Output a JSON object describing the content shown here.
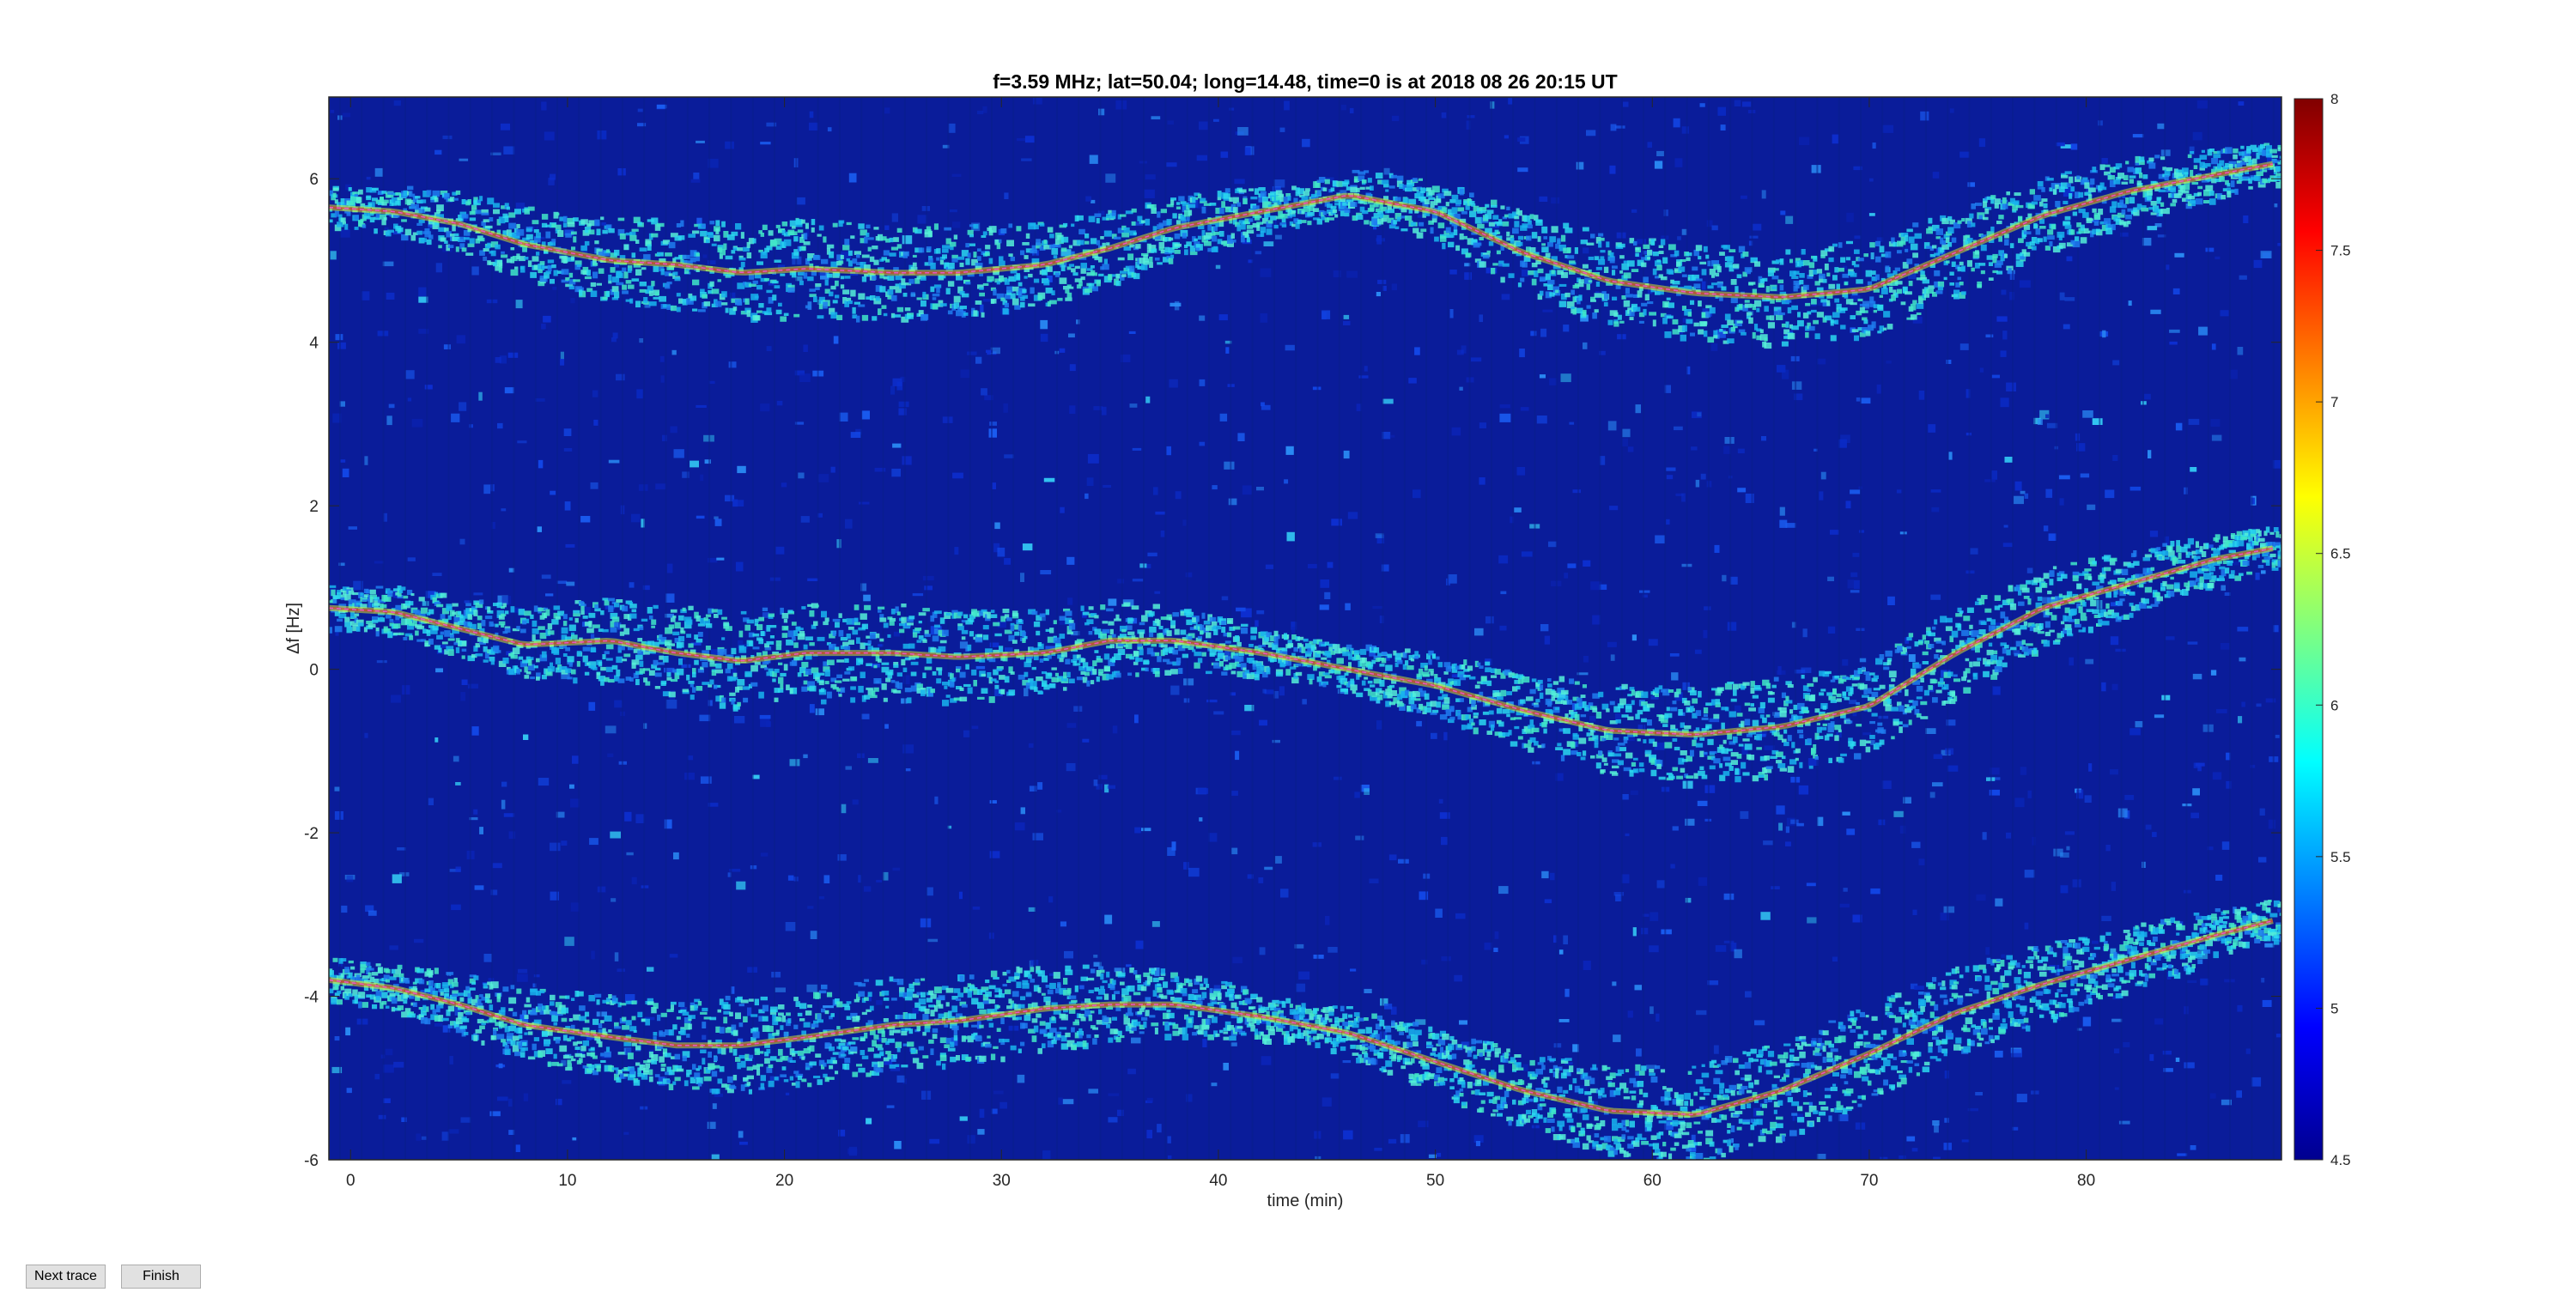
{
  "buttons": {
    "next_trace": "Next trace",
    "finish": "Finish"
  },
  "chart_data": {
    "type": "heatmap",
    "title": "f=3.59 MHz;  lat=50.04; long=14.48, time=0 is at 2018 08 26 20:15 UT",
    "xlabel": "time (min)",
    "ylabel": "Δf [Hz]",
    "xlim": [
      -1,
      89
    ],
    "ylim": [
      -6,
      7
    ],
    "xticks": [
      0,
      10,
      20,
      30,
      40,
      50,
      60,
      70,
      80
    ],
    "yticks": [
      -6,
      -4,
      -2,
      0,
      2,
      4,
      6
    ],
    "colorbar": {
      "range": [
        4.5,
        8
      ],
      "ticks": [
        4.5,
        5,
        5.5,
        6,
        6.5,
        7,
        7.5,
        8
      ],
      "colormap": "jet"
    },
    "grid": false,
    "colors": {
      "background": "#0a1c9a",
      "trace": "#e85ad6"
    },
    "traces": [
      {
        "x": [
          -1,
          2,
          5,
          8,
          12,
          15,
          18,
          21,
          25,
          28,
          32,
          35,
          38,
          42,
          46,
          50,
          54,
          58,
          62,
          66,
          70,
          74,
          78,
          82,
          86,
          89
        ],
        "y": [
          5.65,
          5.6,
          5.45,
          5.2,
          5.0,
          4.95,
          4.85,
          4.9,
          4.85,
          4.85,
          4.95,
          5.15,
          5.4,
          5.6,
          5.8,
          5.6,
          5.1,
          4.75,
          4.6,
          4.55,
          4.65,
          5.1,
          5.55,
          5.85,
          6.05,
          6.2
        ]
      },
      {
        "x": [
          -1,
          2,
          5,
          8,
          12,
          15,
          18,
          21,
          25,
          28,
          32,
          35,
          38,
          42,
          46,
          50,
          54,
          58,
          62,
          66,
          70,
          74,
          78,
          82,
          86,
          89
        ],
        "y": [
          0.75,
          0.7,
          0.5,
          0.3,
          0.35,
          0.2,
          0.1,
          0.2,
          0.2,
          0.15,
          0.2,
          0.35,
          0.35,
          0.2,
          0.0,
          -0.2,
          -0.5,
          -0.75,
          -0.8,
          -0.7,
          -0.45,
          0.2,
          0.75,
          1.05,
          1.35,
          1.5
        ]
      },
      {
        "x": [
          -1,
          2,
          5,
          8,
          12,
          15,
          18,
          21,
          25,
          28,
          32,
          35,
          38,
          42,
          46,
          50,
          54,
          58,
          62,
          66,
          70,
          74,
          78,
          82,
          86,
          89
        ],
        "y": [
          -3.8,
          -3.9,
          -4.1,
          -4.35,
          -4.5,
          -4.6,
          -4.6,
          -4.5,
          -4.35,
          -4.3,
          -4.15,
          -4.1,
          -4.1,
          -4.25,
          -4.45,
          -4.8,
          -5.15,
          -5.4,
          -5.45,
          -5.15,
          -4.7,
          -4.2,
          -3.85,
          -3.55,
          -3.25,
          -3.05
        ]
      }
    ]
  }
}
